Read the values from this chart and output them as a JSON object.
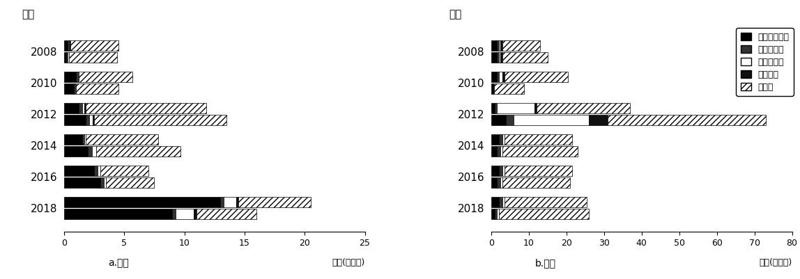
{
  "years": [
    2018,
    2016,
    2014,
    2012,
    2010,
    2008
  ],
  "import_bar1": {
    "2018": [
      13.0,
      0.3,
      1.0,
      0.2,
      6.0
    ],
    "2016": [
      2.5,
      0.3,
      0.2,
      0.0,
      4.0
    ],
    "2014": [
      1.5,
      0.2,
      0.1,
      0.0,
      6.0
    ],
    "2012": [
      1.2,
      0.3,
      0.2,
      0.1,
      10.0
    ],
    "2010": [
      1.0,
      0.2,
      0.0,
      0.0,
      4.5
    ],
    "2008": [
      0.3,
      0.1,
      0.1,
      0.05,
      4.0
    ]
  },
  "import_bar2": {
    "2018": [
      9.0,
      0.3,
      1.5,
      0.2,
      5.0
    ],
    "2016": [
      3.0,
      0.3,
      0.2,
      0.0,
      4.0
    ],
    "2014": [
      2.0,
      0.3,
      0.4,
      0.0,
      7.0
    ],
    "2012": [
      1.8,
      0.3,
      0.3,
      0.1,
      11.0
    ],
    "2010": [
      0.8,
      0.2,
      0.0,
      0.0,
      3.5
    ],
    "2008": [
      0.2,
      0.1,
      0.1,
      0.0,
      4.0
    ]
  },
  "export_bar1": {
    "2018": [
      2.0,
      1.0,
      0.5,
      0.0,
      22.0
    ],
    "2016": [
      2.0,
      1.0,
      0.5,
      0.0,
      18.0
    ],
    "2014": [
      2.0,
      1.0,
      0.5,
      0.0,
      18.0
    ],
    "2012": [
      1.0,
      0.5,
      10.0,
      0.5,
      25.0
    ],
    "2010": [
      1.5,
      0.5,
      1.0,
      0.5,
      17.0
    ],
    "2008": [
      1.5,
      0.5,
      0.5,
      0.5,
      10.0
    ]
  },
  "export_bar2": {
    "2018": [
      1.0,
      0.5,
      0.5,
      0.0,
      24.0
    ],
    "2016": [
      1.5,
      1.0,
      0.5,
      0.0,
      18.0
    ],
    "2014": [
      1.5,
      1.0,
      0.5,
      0.0,
      20.0
    ],
    "2012": [
      4.0,
      2.0,
      20.0,
      5.0,
      42.0
    ],
    "2010": [
      0.5,
      0.2,
      0.0,
      0.0,
      8.0
    ],
    "2008": [
      1.5,
      0.5,
      0.5,
      0.5,
      12.0
    ]
  },
  "legend_labels": [
    "矿物质稀土类",
    "稀土金属类",
    "混合稀土类",
    "鈢合金类",
    "磁铁类"
  ],
  "xlabel_left": "a.进口",
  "xlabel_right": "b.出口",
  "ylabel": "年份",
  "xunit": "总额(亿英元)",
  "import_xlim": 25,
  "export_xlim": 80
}
